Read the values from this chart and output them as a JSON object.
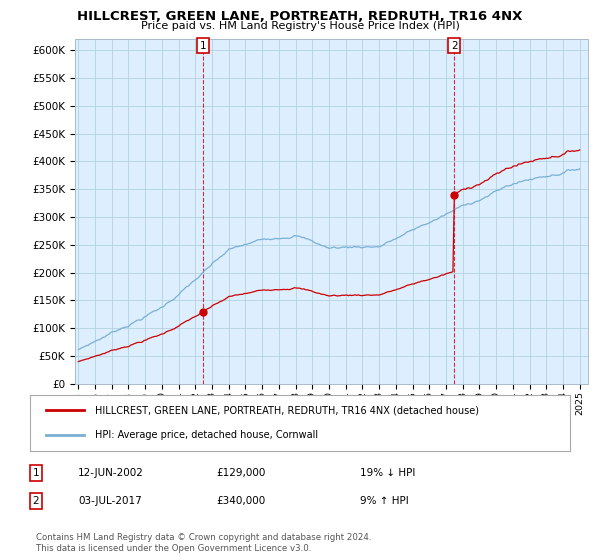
{
  "title": "HILLCREST, GREEN LANE, PORTREATH, REDRUTH, TR16 4NX",
  "subtitle": "Price paid vs. HM Land Registry's House Price Index (HPI)",
  "ylim": [
    0,
    620000
  ],
  "yticks": [
    0,
    50000,
    100000,
    150000,
    200000,
    250000,
    300000,
    350000,
    400000,
    450000,
    500000,
    550000,
    600000
  ],
  "x_start_year": 1995,
  "x_end_year": 2025,
  "sale1_year": 2002.458,
  "sale1_price": 129000,
  "sale1_date": "12-JUN-2002",
  "sale1_pct": "19% ↓ HPI",
  "sale2_year": 2017.5,
  "sale2_price": 340000,
  "sale2_date": "03-JUL-2017",
  "sale2_pct": "9% ↑ HPI",
  "legend_label_red": "HILLCREST, GREEN LANE, PORTREATH, REDRUTH, TR16 4NX (detached house)",
  "legend_label_blue": "HPI: Average price, detached house, Cornwall",
  "footer": "Contains HM Land Registry data © Crown copyright and database right 2024.\nThis data is licensed under the Open Government Licence v3.0.",
  "red_color": "#cc0000",
  "blue_color": "#7ab0d4",
  "chart_bg": "#ddeeff",
  "background_color": "#ffffff",
  "grid_color": "#aaccdd"
}
